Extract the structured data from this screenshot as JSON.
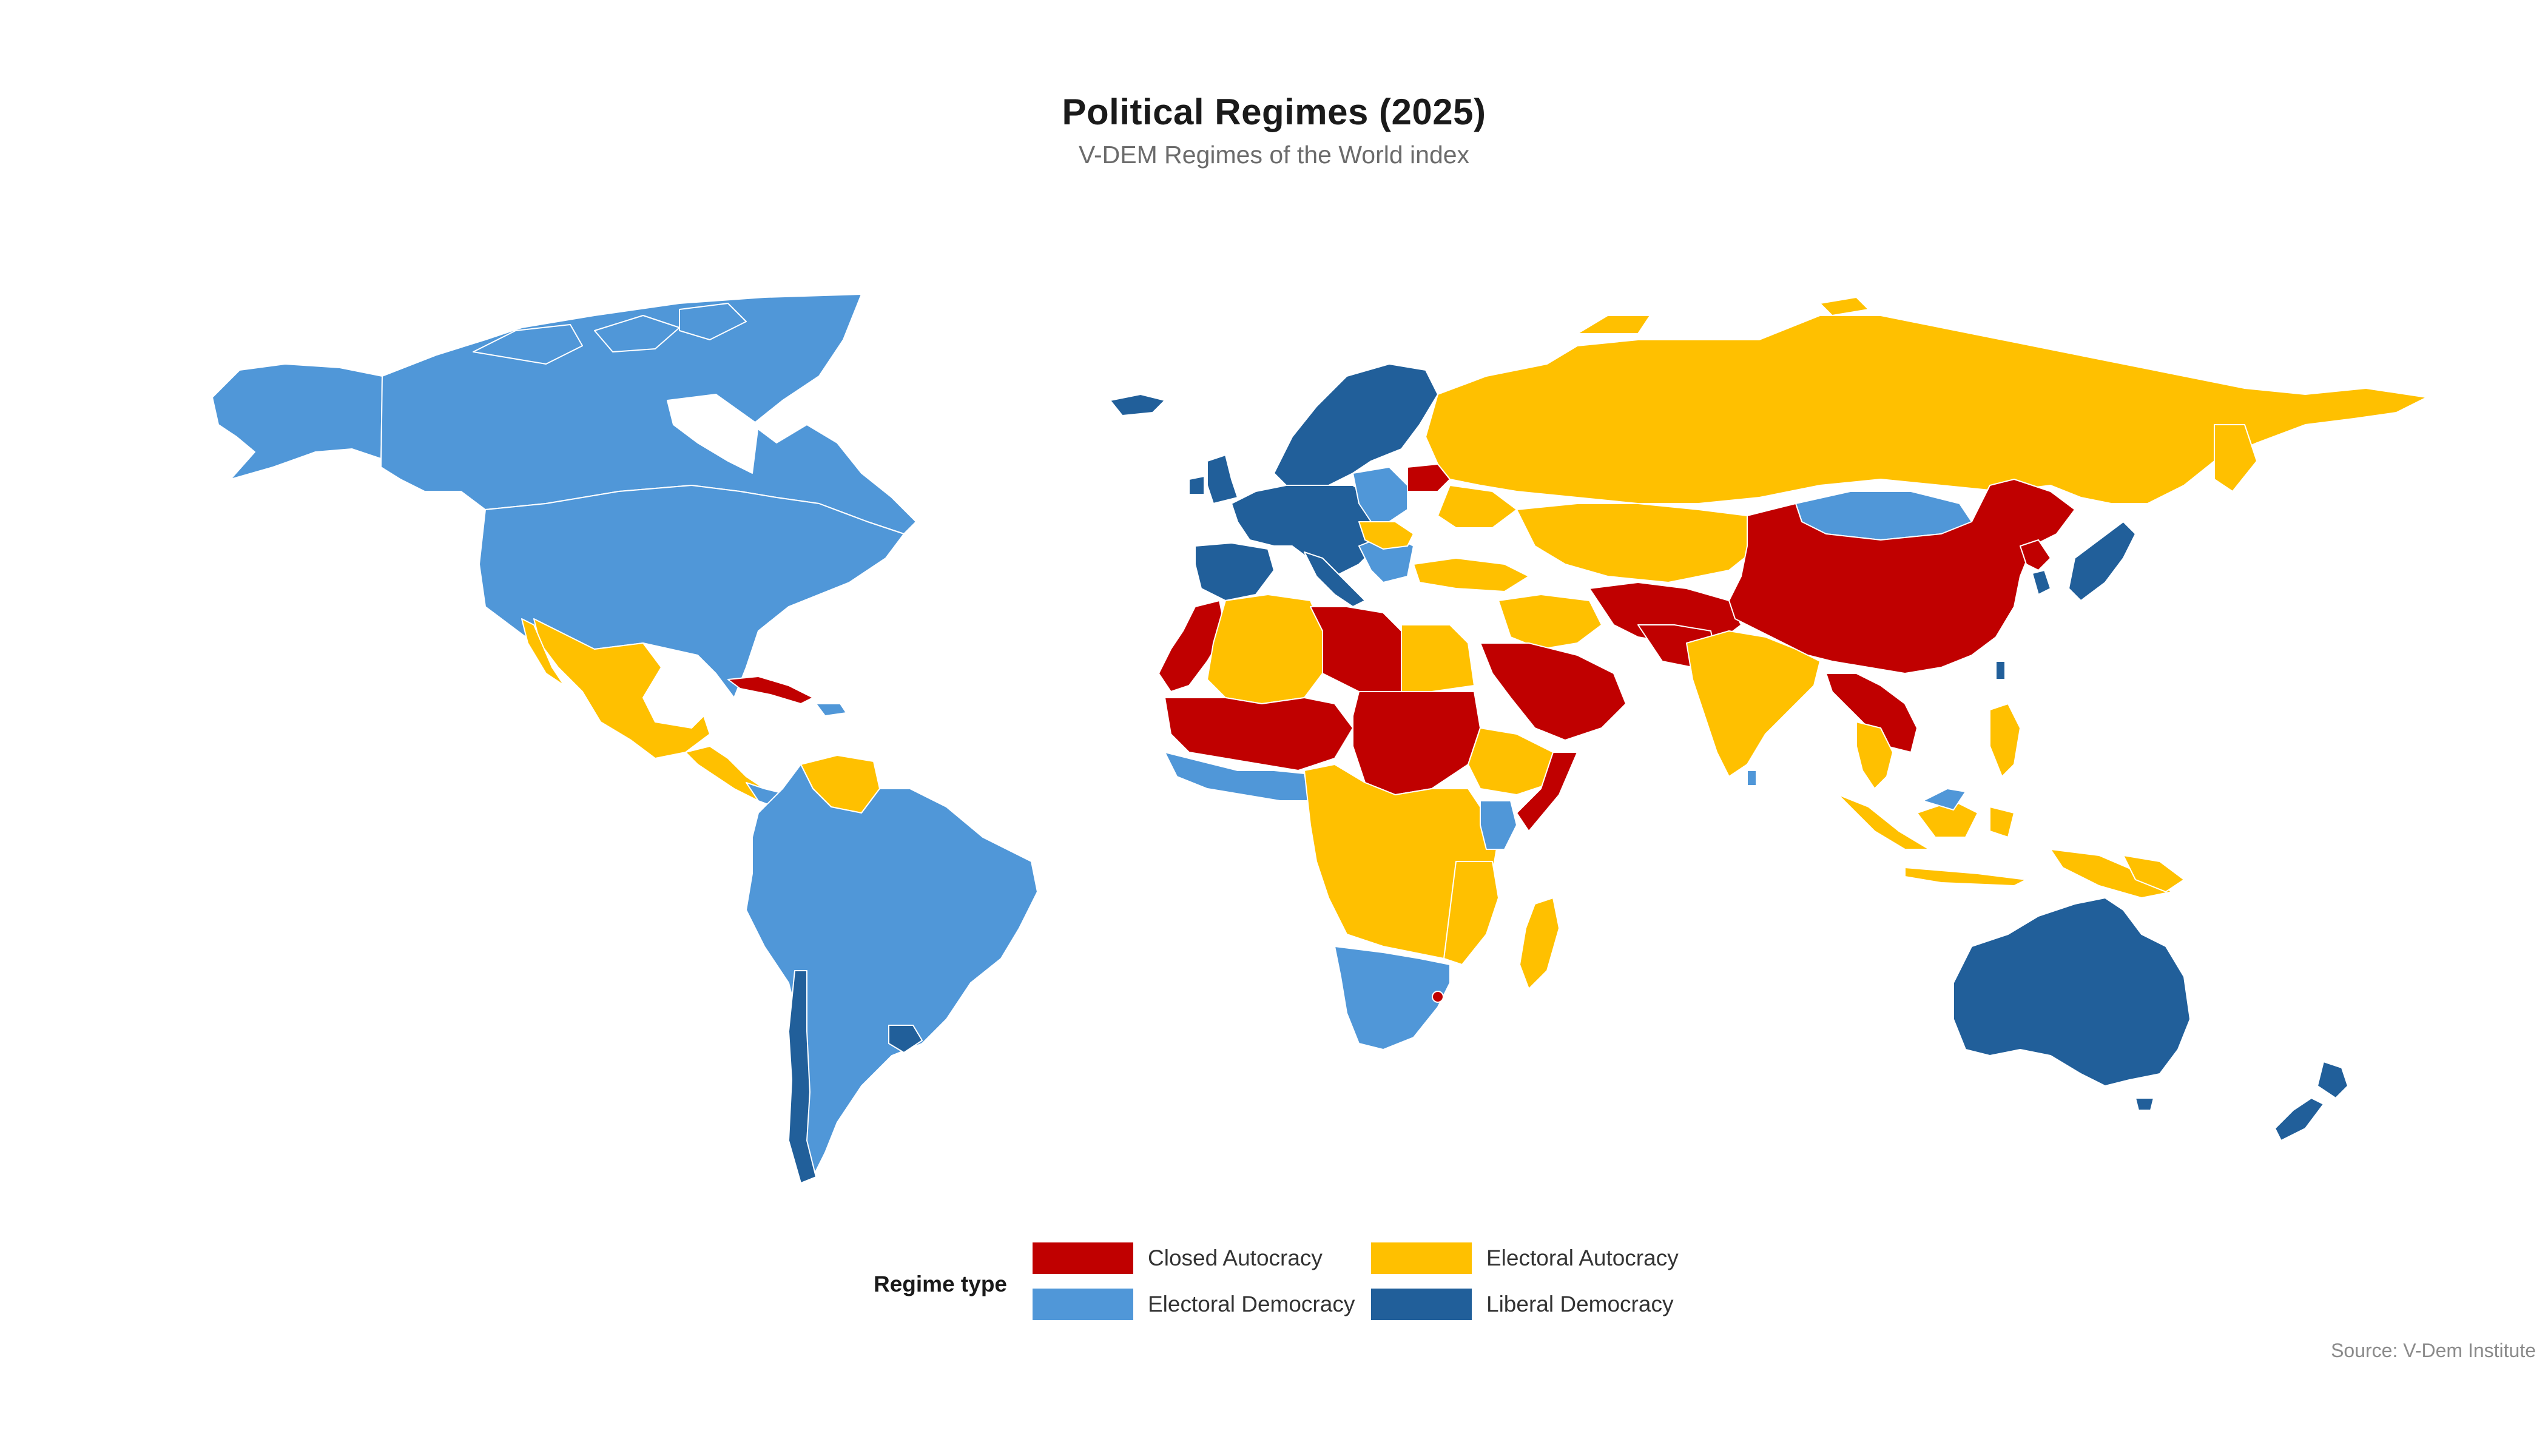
{
  "header": {
    "title": "Political Regimes (2025)",
    "subtitle": "V-DEM Regimes of the World index"
  },
  "legend": {
    "title": "Regime type",
    "items": [
      {
        "key": "closed_autocracy",
        "label": "Closed Autocracy",
        "color": "#c00000"
      },
      {
        "key": "electoral_autocracy",
        "label": "Electoral Autocracy",
        "color": "#ffc000"
      },
      {
        "key": "electoral_democracy",
        "label": "Electoral Democracy",
        "color": "#5097d8"
      },
      {
        "key": "liberal_democracy",
        "label": "Liberal Democracy",
        "color": "#215f9a"
      }
    ]
  },
  "source": "Source: V-Dem Institute",
  "map": {
    "type": "choropleth",
    "categories": {
      "closed_autocracy": "#c00000",
      "electoral_autocracy": "#ffc000",
      "electoral_democracy": "#5097d8",
      "liberal_democracy": "#215f9a"
    }
  }
}
